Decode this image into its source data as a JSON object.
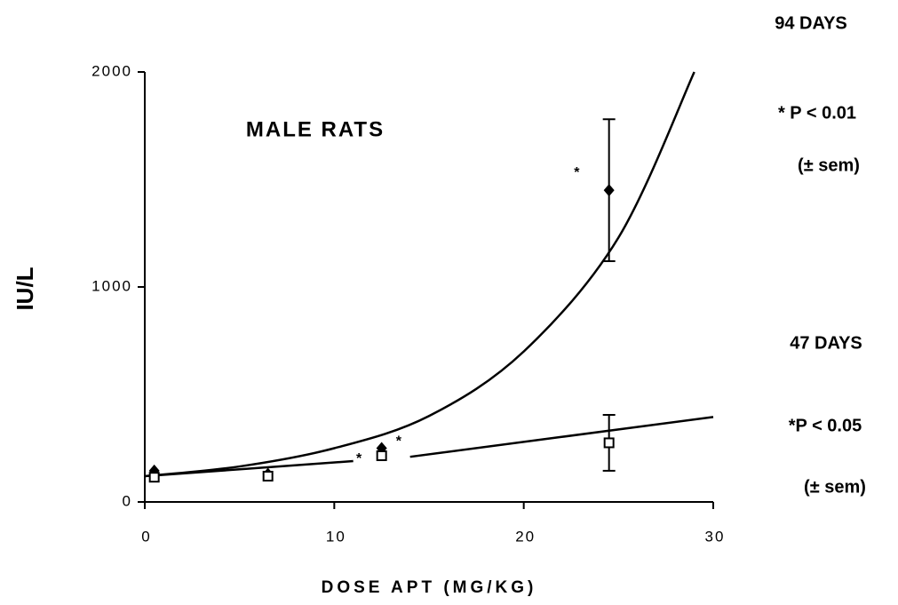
{
  "chart_data": {
    "type": "scatter",
    "title": "MALE RATS",
    "xlabel": "DOSE APT (MG/KG)",
    "ylabel": "IU/L",
    "xlim": [
      0,
      30
    ],
    "ylim": [
      0,
      2000
    ],
    "xticks": [
      0,
      10,
      20,
      30
    ],
    "yticks": [
      0,
      1000,
      2000
    ],
    "series": [
      {
        "name": "94 DAYS",
        "notes": [
          "* P < 0.01",
          "(± sem)"
        ],
        "color": "#000000",
        "marker": "diamond",
        "x": [
          0.5,
          6.5,
          12.5,
          24.5
        ],
        "values": [
          145,
          130,
          250,
          1450
        ],
        "errors": [
          null,
          null,
          null,
          330
        ],
        "fit": {
          "x": [
            0,
            5,
            10,
            15,
            20,
            25,
            29
          ],
          "values": [
            120,
            165,
            250,
            400,
            700,
            1230,
            2000
          ]
        }
      },
      {
        "name": "47 DAYS",
        "notes": [
          "*P < 0.05",
          "(± sem)"
        ],
        "color": "#000000",
        "marker": "square",
        "x": [
          0.5,
          6.5,
          12.5,
          24.5
        ],
        "values": [
          115,
          120,
          215,
          275
        ],
        "errors": [
          null,
          null,
          null,
          130
        ],
        "fit": {
          "x": [
            0,
            11,
            12.5,
            14,
            30
          ],
          "values": [
            120,
            190,
            null,
            210,
            395
          ]
        }
      }
    ],
    "annotations": [
      {
        "text": "*",
        "x": 22.8,
        "y": 1530
      },
      {
        "text": "*",
        "x": 11.3,
        "y": 200
      },
      {
        "text": "*",
        "x": 13.4,
        "y": 280
      }
    ]
  }
}
